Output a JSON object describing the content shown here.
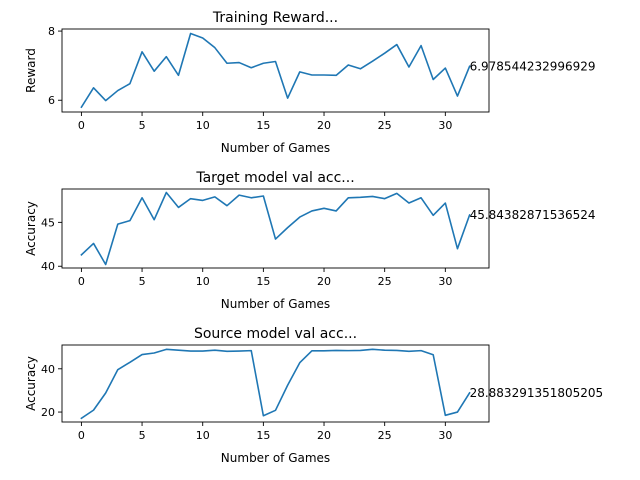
{
  "chart_data": [
    {
      "type": "line",
      "title": "Training Reward...",
      "xlabel": "Number of Games",
      "ylabel": "Reward",
      "xlim": [
        -1.6,
        33.6
      ],
      "ylim": [
        5.66,
        8.06
      ],
      "xticks": [
        0,
        5,
        10,
        15,
        20,
        25,
        30
      ],
      "yticks": [
        6,
        8
      ],
      "grid": false,
      "color": "#1f77b4",
      "annotation": {
        "x": 32,
        "y": 6.978544232996929,
        "text": "6.978544232996929"
      },
      "x": [
        0,
        1,
        2,
        3,
        4,
        5,
        6,
        7,
        8,
        9,
        10,
        11,
        12,
        13,
        14,
        15,
        16,
        17,
        18,
        19,
        20,
        21,
        22,
        23,
        24,
        25,
        26,
        27,
        28,
        29,
        30,
        31,
        32
      ],
      "values": [
        5.8,
        6.36,
        5.99,
        6.28,
        6.48,
        7.4,
        6.84,
        7.26,
        6.72,
        7.93,
        7.8,
        7.52,
        7.07,
        7.09,
        6.94,
        7.07,
        7.12,
        6.06,
        6.82,
        6.73,
        6.73,
        6.72,
        7.02,
        6.91,
        7.13,
        7.36,
        7.61,
        6.96,
        7.58,
        6.6,
        6.93,
        6.12,
        6.98
      ]
    },
    {
      "type": "line",
      "title": "Target model val acc...",
      "xlabel": "Number of Games",
      "ylabel": "Accuracy",
      "xlim": [
        -1.6,
        33.6
      ],
      "ylim": [
        39.8,
        48.8
      ],
      "xticks": [
        0,
        5,
        10,
        15,
        20,
        25,
        30
      ],
      "yticks": [
        40,
        45
      ],
      "grid": false,
      "color": "#1f77b4",
      "annotation": {
        "x": 32,
        "y": 45.84382871536524,
        "text": "45.84382871536524"
      },
      "x": [
        0,
        1,
        2,
        3,
        4,
        5,
        6,
        7,
        8,
        9,
        10,
        11,
        12,
        13,
        14,
        15,
        16,
        17,
        18,
        19,
        20,
        21,
        22,
        23,
        24,
        25,
        26,
        27,
        28,
        29,
        30,
        31,
        32
      ],
      "values": [
        41.3,
        42.6,
        40.2,
        44.8,
        45.2,
        47.8,
        45.3,
        48.4,
        46.7,
        47.7,
        47.5,
        47.9,
        46.9,
        48.1,
        47.8,
        48.0,
        43.1,
        44.4,
        45.6,
        46.3,
        46.6,
        46.3,
        47.8,
        47.85,
        47.95,
        47.7,
        48.3,
        47.2,
        47.8,
        45.8,
        47.2,
        42.0,
        45.84
      ]
    },
    {
      "type": "line",
      "title": "Source model val acc...",
      "xlabel": "Number of Games",
      "ylabel": "Accuracy",
      "xlim": [
        -1.6,
        33.6
      ],
      "ylim": [
        15.4,
        51.0
      ],
      "xticks": [
        0,
        5,
        10,
        15,
        20,
        25,
        30
      ],
      "yticks": [
        20,
        40
      ],
      "grid": false,
      "color": "#1f77b4",
      "annotation": {
        "x": 32,
        "y": 28.883291351805205,
        "text": "28.883291351805205"
      },
      "x": [
        0,
        1,
        2,
        3,
        4,
        5,
        6,
        7,
        8,
        9,
        10,
        11,
        12,
        13,
        14,
        15,
        16,
        17,
        18,
        19,
        20,
        21,
        22,
        23,
        24,
        25,
        26,
        27,
        28,
        29,
        30,
        31,
        32
      ],
      "values": [
        17.1,
        20.9,
        28.8,
        39.6,
        43.0,
        46.6,
        47.3,
        49.0,
        48.6,
        48.2,
        48.2,
        48.6,
        48.1,
        48.2,
        48.4,
        18.3,
        20.8,
        32.4,
        42.8,
        48.3,
        48.3,
        48.5,
        48.4,
        48.5,
        49.0,
        48.6,
        48.5,
        48.1,
        48.4,
        46.5,
        18.5,
        20.0,
        28.88
      ]
    }
  ]
}
